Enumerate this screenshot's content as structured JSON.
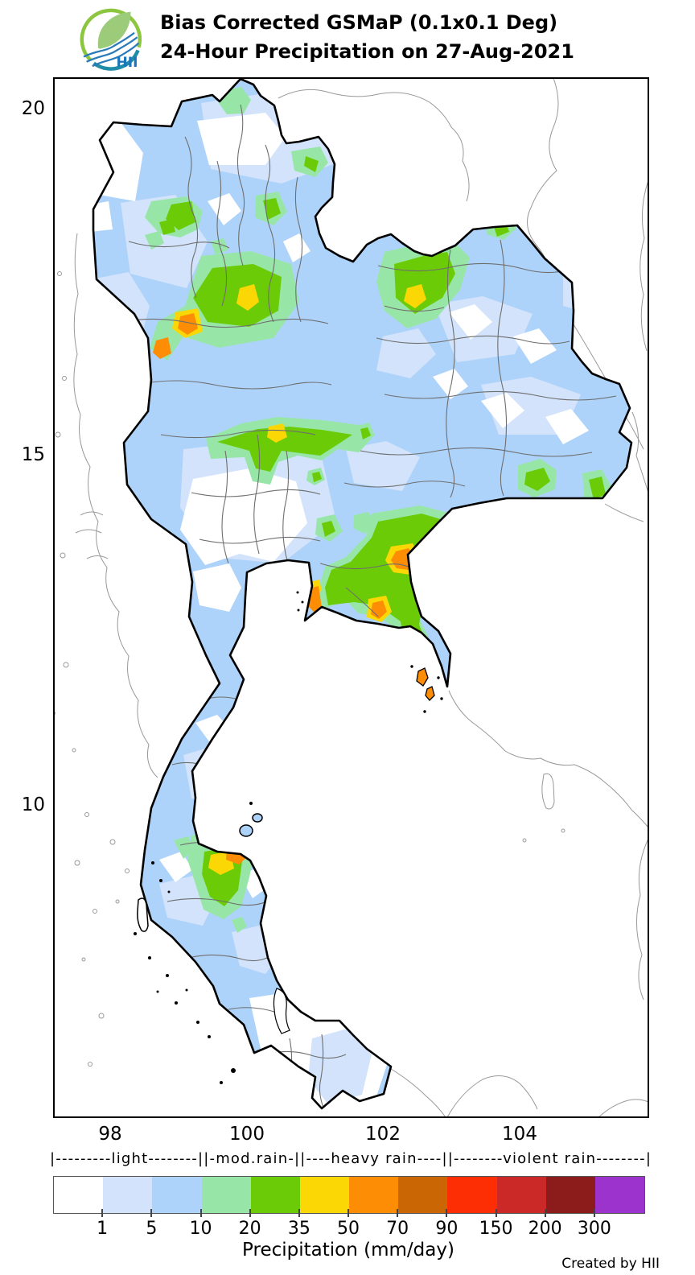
{
  "header": {
    "logo_text": "HII",
    "logo_green": "#8cc63f",
    "logo_teal": "#1f8ca8",
    "logo_text_color": "#1b75bb",
    "title_line1": "Bias Corrected GSMaP (0.1x0.1 Deg)",
    "title_line2": "24-Hour Precipitation on 27-Aug-2021"
  },
  "map": {
    "lat_ticks": [
      "20",
      "15",
      "10"
    ],
    "lon_ticks": [
      "98",
      "100",
      "102",
      "104"
    ],
    "region": "Thailand",
    "precip_palette": {
      "no_rain": "#ffffff",
      "light_1": "#d2e3fb",
      "light_2": "#aed3fa",
      "moderate_1": "#97e6a7",
      "moderate_2": "#6ccb07",
      "heavy_1": "#fbd805",
      "heavy_2": "#fd8d05"
    }
  },
  "legend": {
    "class_line": "|---------light--------||-mod.rain-||----heavy rain----||--------violent rain--------|",
    "classes": [
      "light",
      "mod.rain",
      "heavy rain",
      "violent rain"
    ],
    "colors": [
      "#ffffff",
      "#d2e3fb",
      "#aed3fa",
      "#97e6a7",
      "#6ccb07",
      "#fbd805",
      "#fd8d05",
      "#cb6604",
      "#fe2e04",
      "#cb2927",
      "#8c1b1c",
      "#9c33cc"
    ],
    "tick_labels": [
      "1",
      "5",
      "10",
      "20",
      "35",
      "50",
      "70",
      "90",
      "150",
      "200",
      "300"
    ],
    "xlabel": "Precipitation (mm/day)",
    "credit": "Created by HII"
  }
}
